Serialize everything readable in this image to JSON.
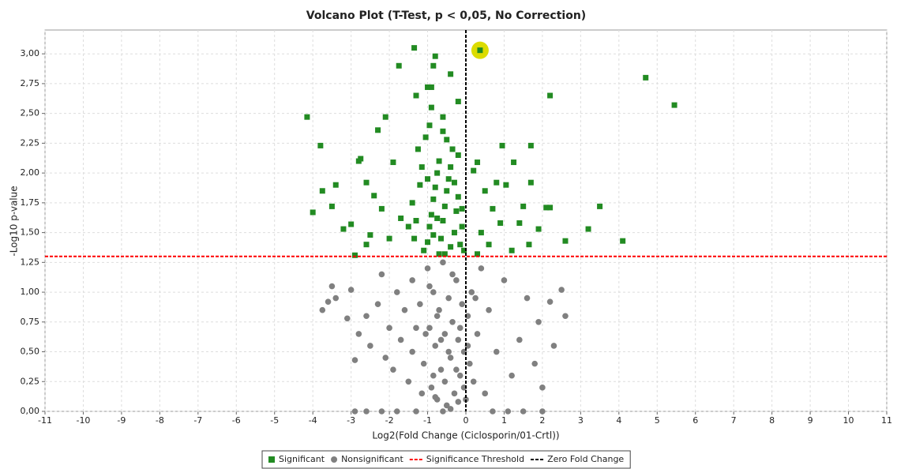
{
  "chart_data": {
    "type": "scatter",
    "title": "Volcano Plot (T-Test, p < 0,05, No Correction)",
    "x_label": "Log2(Fold Change (Ciclosporin/01-Crtl))",
    "y_label": "-Log10 p-value",
    "xlim": [
      -11,
      11
    ],
    "ylim": [
      0,
      3.2
    ],
    "xticks": [
      -11,
      -10,
      -9,
      -8,
      -7,
      -6,
      -5,
      -4,
      -3,
      -2,
      -1,
      0,
      1,
      2,
      3,
      4,
      5,
      6,
      7,
      8,
      9,
      10,
      11
    ],
    "yticks": [
      {
        "value": 0,
        "label": "0,00"
      },
      {
        "value": 0.25,
        "label": "0,25"
      },
      {
        "value": 0.5,
        "label": "0,50"
      },
      {
        "value": 0.75,
        "label": "0,75"
      },
      {
        "value": 1,
        "label": "1,00"
      },
      {
        "value": 1.25,
        "label": "1,25"
      },
      {
        "value": 1.5,
        "label": "1,50"
      },
      {
        "value": 1.75,
        "label": "1,75"
      },
      {
        "value": 2,
        "label": "2,00"
      },
      {
        "value": 2.25,
        "label": "2,25"
      },
      {
        "value": 2.5,
        "label": "2,50"
      },
      {
        "value": 2.75,
        "label": "2,75"
      },
      {
        "value": 3,
        "label": "3,00"
      }
    ],
    "grid": true,
    "series": [
      {
        "name": "Significant",
        "color": "#228b22",
        "marker": "square",
        "x": [
          -4.15,
          -3.8,
          -3.75,
          -4.0,
          -3.5,
          -3.4,
          -3.2,
          -3.0,
          -2.8,
          -2.75,
          -2.6,
          -2.3,
          -2.1,
          -1.9,
          -2.4,
          -2.2,
          -1.75,
          -1.35,
          -1.3,
          -0.8,
          -0.85,
          -1.0,
          -0.9,
          -0.4,
          -0.2,
          -0.9,
          -0.6,
          0.37,
          2.2,
          4.7,
          5.45,
          0.95,
          1.7,
          1.25,
          0.3,
          0.2,
          2.1,
          2.2,
          3.5,
          3.2,
          4.1,
          2.6,
          1.7,
          1.9,
          0.8,
          1.05,
          0.5,
          0.7,
          1.5,
          1.4,
          0.9,
          0.4,
          0.6,
          1.2,
          1.65,
          0.3,
          -2.9,
          -2.6,
          -2.5,
          -2.0,
          -1.7,
          -1.5,
          -1.1,
          -1.0,
          -0.95,
          -0.9,
          -0.85,
          -0.8,
          -0.75,
          -0.7,
          -0.65,
          -0.6,
          -0.55,
          -0.5,
          -0.45,
          -0.4,
          -0.35,
          -0.3,
          -0.25,
          -0.2,
          -0.15,
          -0.1,
          -0.05,
          -1.2,
          -1.25,
          -1.15,
          -1.05,
          -0.95,
          -0.6,
          -0.5,
          -0.4,
          -0.7,
          -0.85,
          -1.3,
          -1.4,
          -1.35,
          -0.3,
          -0.2,
          -0.1,
          -0.55,
          -0.75,
          -1.0
        ],
        "y": [
          2.47,
          2.23,
          1.85,
          1.67,
          1.72,
          1.9,
          1.53,
          1.57,
          2.1,
          2.12,
          1.92,
          2.36,
          2.47,
          2.09,
          1.81,
          1.7,
          2.9,
          3.05,
          2.65,
          2.98,
          2.9,
          2.72,
          2.72,
          2.83,
          2.6,
          2.55,
          2.47,
          3.03,
          2.65,
          2.8,
          2.57,
          2.23,
          2.23,
          2.09,
          2.09,
          2.02,
          1.71,
          1.71,
          1.72,
          1.53,
          1.43,
          1.43,
          1.92,
          1.53,
          1.92,
          1.9,
          1.85,
          1.7,
          1.72,
          1.58,
          1.58,
          1.5,
          1.4,
          1.35,
          1.4,
          1.32,
          1.31,
          1.4,
          1.48,
          1.45,
          1.62,
          1.55,
          1.35,
          1.42,
          1.55,
          1.65,
          1.78,
          1.88,
          2.0,
          2.1,
          1.45,
          1.6,
          1.72,
          1.85,
          1.95,
          2.05,
          2.2,
          1.5,
          1.68,
          1.8,
          1.4,
          1.55,
          1.35,
          1.9,
          2.2,
          2.05,
          2.3,
          2.4,
          2.35,
          2.28,
          1.38,
          1.32,
          1.48,
          1.6,
          1.75,
          1.45,
          1.92,
          2.15,
          1.7,
          1.32,
          1.62,
          1.95
        ]
      },
      {
        "name": "Nonsignificant",
        "color": "#808080",
        "marker": "circle",
        "x": [
          -3.5,
          -3.6,
          -3.75,
          -3.4,
          -3.0,
          -3.1,
          -2.9,
          -2.8,
          -2.6,
          -2.5,
          -2.3,
          -2.2,
          -2.0,
          -1.9,
          -2.1,
          -1.8,
          -1.7,
          -1.6,
          -1.5,
          -1.4,
          2.6,
          2.5,
          2.3,
          2.2,
          2.0,
          1.9,
          1.8,
          1.6,
          1.4,
          1.2,
          1.0,
          0.8,
          0.6,
          0.5,
          0.4,
          -2.9,
          -2.6,
          -2.2,
          -1.8,
          -1.3,
          0.7,
          1.1,
          1.5,
          2.0,
          -1.2,
          -1.1,
          -1.0,
          -0.95,
          -0.9,
          -0.85,
          -0.8,
          -0.75,
          -0.7,
          -0.65,
          -0.6,
          -0.55,
          -0.5,
          -0.45,
          -0.4,
          -0.35,
          -0.3,
          -0.25,
          -0.2,
          -0.15,
          -0.1,
          -0.05,
          0.0,
          0.05,
          0.1,
          0.15,
          0.2,
          -1.15,
          -1.05,
          -0.95,
          -0.85,
          -0.75,
          -0.65,
          -0.55,
          -0.45,
          -0.35,
          -0.25,
          -0.15,
          -0.05,
          0.05,
          -0.6,
          -0.4,
          -0.2,
          -0.8,
          -1.3,
          -1.4,
          0.3,
          0.25
        ],
        "y": [
          1.05,
          0.92,
          0.85,
          0.95,
          1.02,
          0.78,
          0.43,
          0.65,
          0.8,
          0.55,
          0.9,
          1.15,
          0.7,
          0.35,
          0.45,
          1.0,
          0.6,
          0.85,
          0.25,
          0.5,
          0.8,
          1.02,
          0.55,
          0.92,
          0.2,
          0.75,
          0.4,
          0.95,
          0.6,
          0.3,
          1.1,
          0.5,
          0.85,
          0.15,
          1.2,
          0,
          0,
          0,
          0,
          0,
          0,
          0,
          0,
          0,
          0.9,
          0.4,
          1.2,
          0.7,
          0.2,
          1.0,
          0.55,
          0.1,
          0.85,
          0.35,
          1.25,
          0.65,
          0.05,
          0.95,
          0.45,
          0.75,
          0.15,
          1.1,
          0.6,
          0.3,
          0.9,
          0.5,
          0.1,
          0.8,
          0.4,
          1.0,
          0.25,
          0.15,
          0.65,
          1.05,
          0.3,
          0.8,
          0.6,
          0.25,
          0.5,
          1.15,
          0.35,
          0.7,
          0.2,
          0.55,
          0.0,
          0.02,
          0.08,
          0.12,
          0.7,
          1.1,
          0.65,
          0.95
        ]
      }
    ],
    "lines": [
      {
        "name": "Significance Threshold",
        "axis": "y",
        "value": 1.3,
        "color": "#ff0000"
      },
      {
        "name": "Zero Fold Change",
        "axis": "x",
        "value": 0,
        "color": "#000000"
      }
    ],
    "highlight": {
      "x": 0.37,
      "y": 3.03,
      "color": "#dcdc00"
    }
  }
}
